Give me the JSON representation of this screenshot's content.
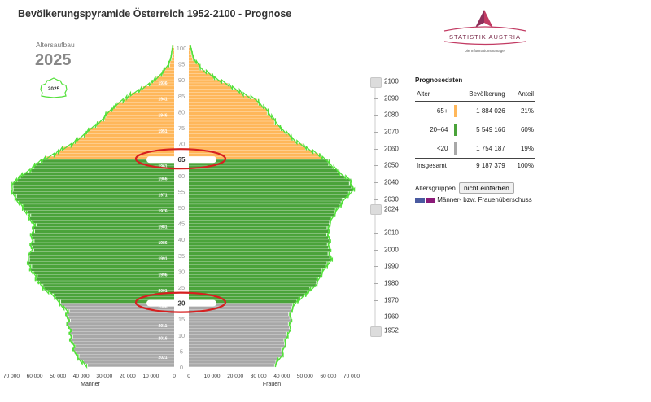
{
  "title": "Bevölkerungspyramide Österreich 1952-2100 - Prognose",
  "logo": {
    "name": "STATISTIK AUSTRIA",
    "tagline": "Die Informationsmanager"
  },
  "panel": {
    "label": "Altersaufbau",
    "year": "2025",
    "thumbnail_label": "2025"
  },
  "colors": {
    "old": "#ffb75a",
    "working": "#4aa33a",
    "young": "#a8a8a8",
    "outline": "#53e03a",
    "male_surplus": "#4a5aa0",
    "female_surplus": "#8a1a78",
    "highlight": "#d62020"
  },
  "chart_data": {
    "type": "bar",
    "title": "Bevölkerungspyramide Österreich 1952-2100 - Prognose",
    "subtitle": "Altersaufbau 2025",
    "xlabel_left": "Männer",
    "xlabel_right": "Frauen",
    "x_ticks": [
      "70 000",
      "60 000",
      "50 000",
      "40 000",
      "30 000",
      "20 000",
      "10 000",
      "0"
    ],
    "x_range": [
      0,
      70000
    ],
    "age_range": [
      0,
      100
    ],
    "age_ticks": [
      0,
      5,
      10,
      15,
      20,
      25,
      30,
      35,
      40,
      45,
      50,
      55,
      60,
      65,
      70,
      75,
      80,
      85,
      90,
      95,
      100
    ],
    "highlight_ages": [
      20,
      65
    ],
    "birth_year_labels": [
      {
        "age": 3,
        "label": "2021"
      },
      {
        "age": 9,
        "label": "2016"
      },
      {
        "age": 13,
        "label": "2011"
      },
      {
        "age": 19,
        "label": "2006"
      },
      {
        "age": 24,
        "label": "2001"
      },
      {
        "age": 29,
        "label": "1996"
      },
      {
        "age": 34,
        "label": "1991"
      },
      {
        "age": 39,
        "label": "1986"
      },
      {
        "age": 44,
        "label": "1981"
      },
      {
        "age": 49,
        "label": "1976"
      },
      {
        "age": 54,
        "label": "1971"
      },
      {
        "age": 59,
        "label": "1966"
      },
      {
        "age": 63,
        "label": "1961"
      },
      {
        "age": 74,
        "label": "1951"
      },
      {
        "age": 79,
        "label": "1946"
      },
      {
        "age": 84,
        "label": "1941"
      },
      {
        "age": 89,
        "label": "1936"
      }
    ],
    "groups": [
      {
        "name": "<20",
        "from": 0,
        "to": 19,
        "color": "#a8a8a8"
      },
      {
        "name": "20–64",
        "from": 20,
        "to": 64,
        "color": "#4aa33a"
      },
      {
        "name": "65+",
        "from": 65,
        "to": 100,
        "color": "#ffb75a"
      }
    ],
    "series": [
      {
        "name": "Männer",
        "age_keys": [
          0,
          3,
          8,
          12,
          17,
          20,
          22,
          25,
          29,
          33,
          36,
          40,
          44,
          48,
          52,
          55,
          58,
          60,
          62,
          64,
          66,
          70,
          73,
          76,
          80,
          83,
          86,
          90,
          93,
          96,
          100
        ],
        "values": [
          38000,
          41500,
          43500,
          45000,
          45500,
          49000,
          52000,
          57000,
          60000,
          63000,
          61000,
          60500,
          60000,
          63000,
          67000,
          70000,
          68000,
          64000,
          60000,
          57000,
          52000,
          42000,
          37000,
          32000,
          27000,
          22000,
          15000,
          7000,
          3000,
          1000,
          100
        ]
      },
      {
        "name": "Frauen",
        "age_keys": [
          0,
          3,
          8,
          12,
          17,
          20,
          22,
          25,
          29,
          33,
          36,
          40,
          44,
          48,
          52,
          55,
          58,
          60,
          62,
          64,
          66,
          70,
          73,
          76,
          80,
          83,
          86,
          90,
          93,
          96,
          100
        ],
        "values": [
          36000,
          39500,
          41500,
          43000,
          43500,
          46000,
          49000,
          54000,
          57000,
          60500,
          60000,
          60000,
          59500,
          62500,
          66500,
          70000,
          69000,
          65000,
          62000,
          59500,
          55000,
          46000,
          41500,
          37000,
          33000,
          29000,
          21000,
          11000,
          5000,
          1600,
          200
        ]
      }
    ]
  },
  "slider": {
    "top_label": "2100",
    "bottom_label": "1952",
    "current_label": "2024",
    "ticks": [
      "2090",
      "2080",
      "2070",
      "2060",
      "2050",
      "2040",
      "2030",
      "2010",
      "2000",
      "1990",
      "1980",
      "1970",
      "1960"
    ]
  },
  "prognose": {
    "title": "Prognosedaten",
    "headers": [
      "Alter",
      "Bevölkerung",
      "Anteil"
    ],
    "rows": [
      {
        "age": "65+",
        "pop": "1 884 026",
        "share": "21%",
        "color": "#ffb75a"
      },
      {
        "age": "20–64",
        "pop": "5 549 166",
        "share": "60%",
        "color": "#4aa33a"
      },
      {
        "age": "<20",
        "pop": "1 754 187",
        "share": "19%",
        "color": "#a8a8a8"
      }
    ],
    "total": {
      "label": "Insgesamt",
      "pop": "9 187 379",
      "share": "100%"
    }
  },
  "altersgruppen": {
    "label": "Altersgruppen",
    "button": "nicht einfärben",
    "legend": "Männer- bzw. Frauenüberschuss"
  }
}
